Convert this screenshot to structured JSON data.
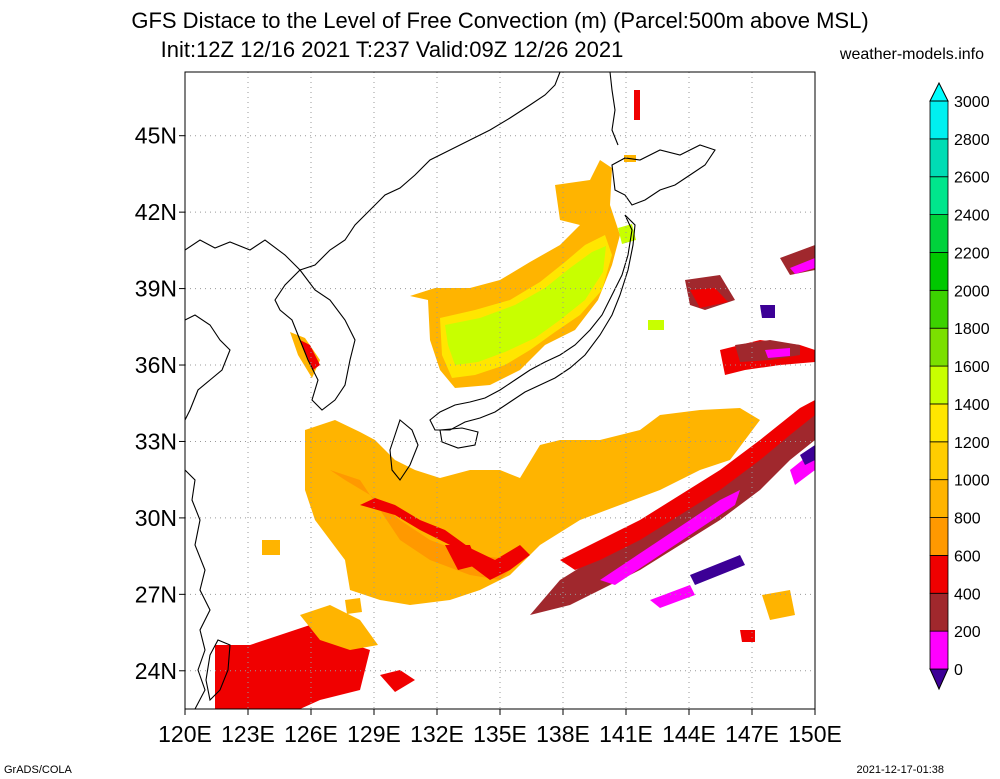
{
  "header": {
    "title_line1": "GFS Distace to the Level of Free Convection (m) (Parcel:500m above MSL)",
    "title_line2": "Init:12Z 12/16 2021 T:237 Valid:09Z 12/26 2021",
    "site": "weather-models.info"
  },
  "footer": {
    "credit": "GrADS/COLA",
    "timestamp": "2021-12-17-01:38"
  },
  "map": {
    "lon_labels": [
      "120E",
      "123E",
      "126E",
      "129E",
      "132E",
      "135E",
      "138E",
      "141E",
      "144E",
      "147E",
      "150E"
    ],
    "lat_labels": [
      "24N",
      "27N",
      "30N",
      "33N",
      "36N",
      "39N",
      "42N",
      "45N"
    ],
    "lon_range": [
      120,
      150
    ],
    "lat_range": [
      22.5,
      47.5
    ],
    "grid": "dotted"
  },
  "colorbar": {
    "levels": [
      "0",
      "200",
      "400",
      "600",
      "800",
      "1000",
      "1200",
      "1400",
      "1600",
      "1800",
      "2000",
      "2200",
      "2400",
      "2600",
      "2800",
      "3000"
    ],
    "colors": [
      "#3c0096",
      "#ff00ff",
      "#a0282d",
      "#f00000",
      "#ff9900",
      "#ffb400",
      "#ffcd00",
      "#ffe600",
      "#c8ff00",
      "#7be000",
      "#3cd200",
      "#00c800",
      "#00d23c",
      "#00e68c",
      "#00dcb4",
      "#00f0f0",
      "#00ffff"
    ]
  }
}
